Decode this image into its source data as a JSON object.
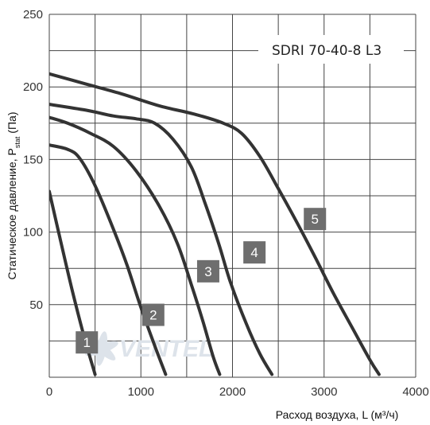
{
  "chart_data": {
    "type": "line",
    "title": "SDRI 70-40-8 L3",
    "xlabel": "Расход воздуха, L (м³/ч)",
    "ylabel_main": "Статическое давление, P",
    "ylabel_sub": "stat",
    "ylabel_tail": " (Па)",
    "xlim": [
      0,
      4000
    ],
    "ylim": [
      0,
      250
    ],
    "x_ticks": [
      "0",
      "1000",
      "2000",
      "3000",
      "4000"
    ],
    "y_ticks": [
      "50",
      "100",
      "150",
      "200",
      "250"
    ],
    "grid": true,
    "watermark": "VENTEL",
    "colors": {
      "line": "#333333",
      "grid": "#444444",
      "badge": "#6e6e6e",
      "watermark": "#dde3ea"
    },
    "series": [
      {
        "label": "1",
        "points": [
          [
            0,
            128
          ],
          [
            120,
            95
          ],
          [
            250,
            60
          ],
          [
            380,
            28
          ],
          [
            500,
            2
          ]
        ]
      },
      {
        "label": "2",
        "points": [
          [
            0,
            160
          ],
          [
            200,
            157
          ],
          [
            330,
            151
          ],
          [
            500,
            132
          ],
          [
            700,
            102
          ],
          [
            850,
            77
          ],
          [
            1000,
            48
          ],
          [
            1150,
            22
          ],
          [
            1270,
            2
          ]
        ]
      },
      {
        "label": "3",
        "points": [
          [
            0,
            179
          ],
          [
            200,
            175
          ],
          [
            450,
            168
          ],
          [
            700,
            159
          ],
          [
            950,
            142
          ],
          [
            1200,
            118
          ],
          [
            1400,
            92
          ],
          [
            1560,
            62
          ],
          [
            1680,
            38
          ],
          [
            1790,
            14
          ],
          [
            1860,
            2
          ]
        ]
      },
      {
        "label": "4",
        "points": [
          [
            0,
            188
          ],
          [
            400,
            184
          ],
          [
            700,
            180
          ],
          [
            950,
            178
          ],
          [
            1150,
            175
          ],
          [
            1350,
            164
          ],
          [
            1550,
            145
          ],
          [
            1700,
            120
          ],
          [
            1850,
            92
          ],
          [
            1980,
            65
          ],
          [
            2150,
            37
          ],
          [
            2300,
            16
          ],
          [
            2430,
            2
          ]
        ]
      },
      {
        "label": "5",
        "points": [
          [
            0,
            209
          ],
          [
            400,
            202
          ],
          [
            800,
            195
          ],
          [
            1200,
            187
          ],
          [
            1600,
            181
          ],
          [
            1900,
            175
          ],
          [
            2100,
            168
          ],
          [
            2300,
            152
          ],
          [
            2500,
            130
          ],
          [
            2700,
            107
          ],
          [
            2900,
            83
          ],
          [
            3100,
            58
          ],
          [
            3300,
            35
          ],
          [
            3500,
            12
          ],
          [
            3600,
            2
          ]
        ]
      }
    ],
    "curve_label_positions": [
      {
        "label": "1",
        "x": 410,
        "y": 24
      },
      {
        "label": "2",
        "x": 1135,
        "y": 43
      },
      {
        "label": "3",
        "x": 1735,
        "y": 73
      },
      {
        "label": "4",
        "x": 2240,
        "y": 86
      },
      {
        "label": "5",
        "x": 2900,
        "y": 109
      }
    ]
  }
}
